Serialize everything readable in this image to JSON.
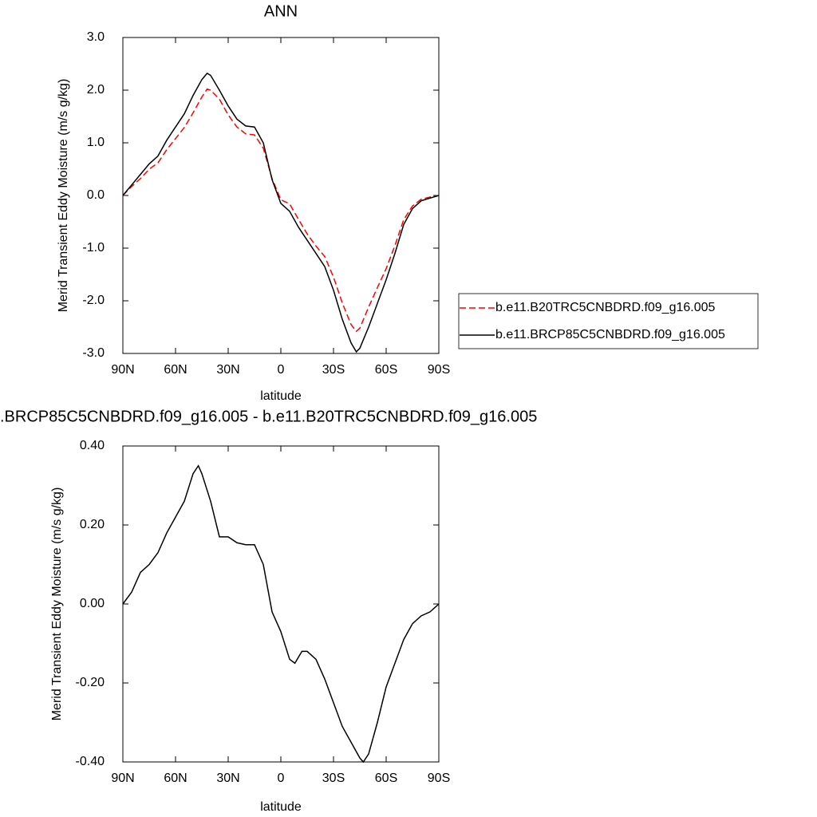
{
  "chart_data": [
    {
      "type": "line",
      "title": "ANN",
      "x_label": "latitude",
      "y_label": "Merid Transient Eddy Moisture (m/s g/kg)",
      "x": [
        90,
        85,
        80,
        75,
        70,
        65,
        60,
        55,
        50,
        45,
        42,
        40,
        35,
        30,
        25,
        20,
        15,
        10,
        5,
        0,
        -5,
        -10,
        -15,
        -20,
        -25,
        -30,
        -35,
        -40,
        -43,
        -45,
        -50,
        -55,
        -60,
        -65,
        -70,
        -75,
        -80,
        -85,
        -90
      ],
      "series": [
        {
          "name": "b.e11.B20TRC5CNBDRD.f09_g16.005",
          "color": "#ff0000",
          "line_style": "dashed",
          "values": [
            0,
            0.17,
            0.32,
            0.5,
            0.62,
            0.87,
            1.08,
            1.29,
            1.57,
            1.87,
            2.02,
            2.0,
            1.83,
            1.53,
            1.3,
            1.17,
            1.15,
            0.9,
            0.32,
            -0.08,
            -0.16,
            -0.45,
            -0.73,
            -0.96,
            -1.16,
            -1.55,
            -2.04,
            -2.45,
            -2.58,
            -2.52,
            -2.12,
            -1.75,
            -1.39,
            -0.95,
            -0.46,
            -0.2,
            -0.07,
            -0.03,
            0
          ]
        },
        {
          "name": "b.e11.BRCP85C5CNBDRD.f09_g16.005",
          "color": "#000000",
          "line_style": "solid",
          "values": [
            0,
            0.2,
            0.4,
            0.6,
            0.75,
            1.05,
            1.3,
            1.55,
            1.9,
            2.2,
            2.32,
            2.28,
            2.0,
            1.7,
            1.45,
            1.32,
            1.3,
            1.0,
            0.3,
            -0.15,
            -0.3,
            -0.6,
            -0.85,
            -1.1,
            -1.35,
            -1.8,
            -2.35,
            -2.8,
            -2.97,
            -2.9,
            -2.5,
            -2.05,
            -1.6,
            -1.1,
            -0.55,
            -0.25,
            -0.1,
            -0.05,
            0
          ]
        }
      ],
      "xlim": [
        90,
        -90
      ],
      "xticks": [
        {
          "value": 90,
          "label": "90N"
        },
        {
          "value": 60,
          "label": "60N"
        },
        {
          "value": 30,
          "label": "30N"
        },
        0,
        {
          "value": -30,
          "label": "30S"
        },
        {
          "value": -60,
          "label": "60S"
        },
        {
          "value": -90,
          "label": "90S"
        }
      ],
      "ylim": [
        -3,
        3
      ],
      "yticks": [
        {
          "value": -3,
          "label": "-3.0"
        },
        {
          "value": -2,
          "label": "-2.0"
        },
        {
          "value": -1,
          "label": "-1.0"
        },
        {
          "value": 0,
          "label": "0.0"
        },
        {
          "value": 1,
          "label": "1.0"
        },
        {
          "value": 2,
          "label": "2.0"
        },
        {
          "value": 3,
          "label": "3.0"
        }
      ],
      "legend": "right"
    },
    {
      "type": "line",
      "title": ".BRCP85C5CNBDRD.f09_g16.005 - b.e11.B20TRC5CNBDRD.f09_g16.005",
      "x_label": "latitude",
      "y_label": "Merid Transient Eddy Moisture (m/s g/kg)",
      "x": [
        90,
        85,
        80,
        75,
        70,
        65,
        60,
        55,
        50,
        47,
        45,
        40,
        35,
        30,
        25,
        20,
        15,
        10,
        5,
        0,
        -5,
        -8,
        -12,
        -15,
        -20,
        -25,
        -30,
        -35,
        -40,
        -45,
        -47,
        -50,
        -55,
        -60,
        -65,
        -70,
        -75,
        -80,
        -85,
        -90
      ],
      "series": [
        {
          "color": "#000000",
          "line_style": "solid",
          "values": [
            0,
            0.03,
            0.08,
            0.1,
            0.13,
            0.18,
            0.22,
            0.26,
            0.33,
            0.35,
            0.33,
            0.26,
            0.17,
            0.17,
            0.155,
            0.15,
            0.15,
            0.1,
            -0.02,
            -0.07,
            -0.14,
            -0.15,
            -0.12,
            -0.12,
            -0.14,
            -0.19,
            -0.25,
            -0.31,
            -0.35,
            -0.39,
            -0.4,
            -0.38,
            -0.3,
            -0.21,
            -0.15,
            -0.09,
            -0.05,
            -0.03,
            -0.02,
            0
          ]
        }
      ],
      "xlim": [
        90,
        -90
      ],
      "xticks": [
        {
          "value": 90,
          "label": "90N"
        },
        {
          "value": 60,
          "label": "60N"
        },
        {
          "value": 30,
          "label": "30N"
        },
        0,
        {
          "value": -30,
          "label": "30S"
        },
        {
          "value": -60,
          "label": "60S"
        },
        {
          "value": -90,
          "label": "90S"
        }
      ],
      "ylim": [
        -0.4,
        0.4
      ],
      "yticks": [
        {
          "value": -0.4,
          "label": "-0.40"
        },
        {
          "value": -0.2,
          "label": "-0.20"
        },
        {
          "value": 0,
          "label": "0.00"
        },
        {
          "value": 0.2,
          "label": "0.20"
        },
        {
          "value": 0.4,
          "label": "0.40"
        }
      ]
    }
  ]
}
